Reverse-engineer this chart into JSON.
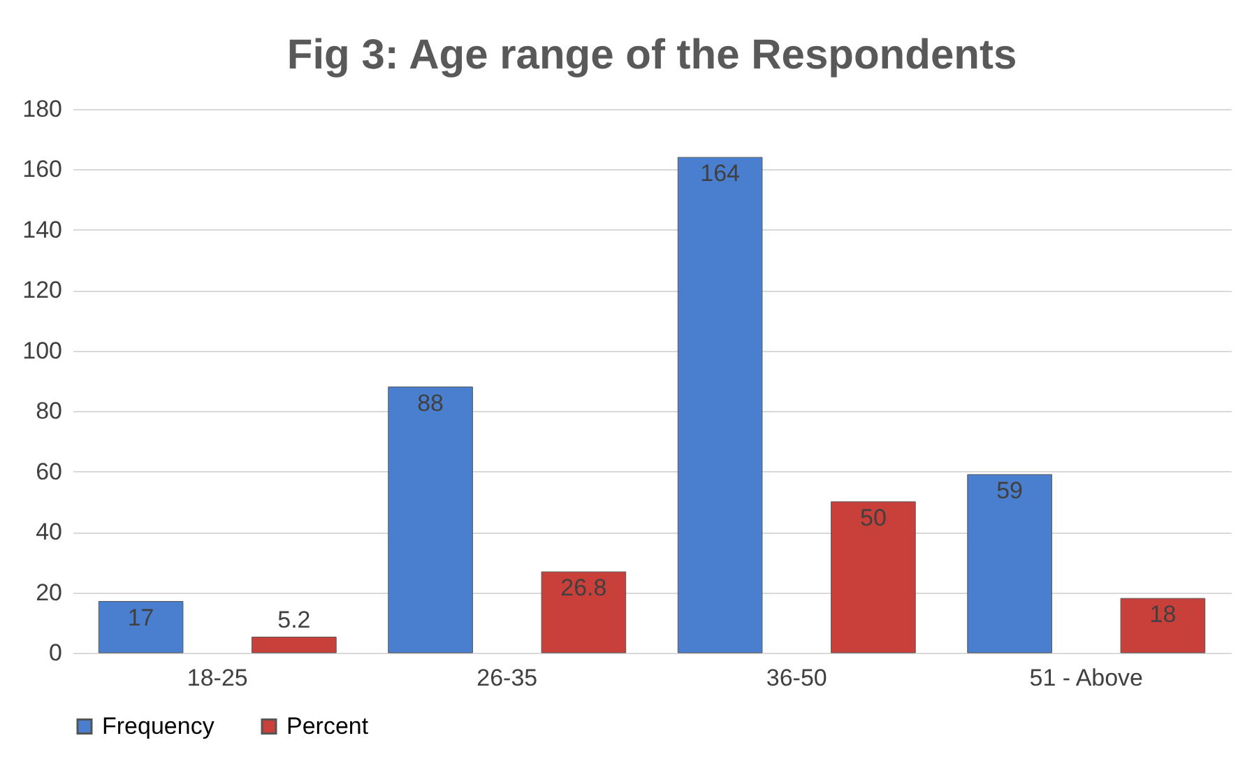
{
  "chart_data": {
    "type": "bar",
    "title": "Fig 3: Age range of the Respondents",
    "categories": [
      "18-25",
      "26-35",
      "36-50",
      "51 - Above"
    ],
    "series": [
      {
        "name": "Frequency",
        "color": "#4a7ecf",
        "values": [
          17,
          88,
          164,
          59
        ]
      },
      {
        "name": "Percent",
        "color": "#c9403a",
        "values": [
          5.2,
          26.8,
          50,
          18
        ]
      }
    ],
    "ylim": [
      0,
      180
    ],
    "yticks": [
      0,
      20,
      40,
      60,
      80,
      100,
      120,
      140,
      160,
      180
    ],
    "grid": "y",
    "legend": "bottom",
    "data_labels": true
  }
}
